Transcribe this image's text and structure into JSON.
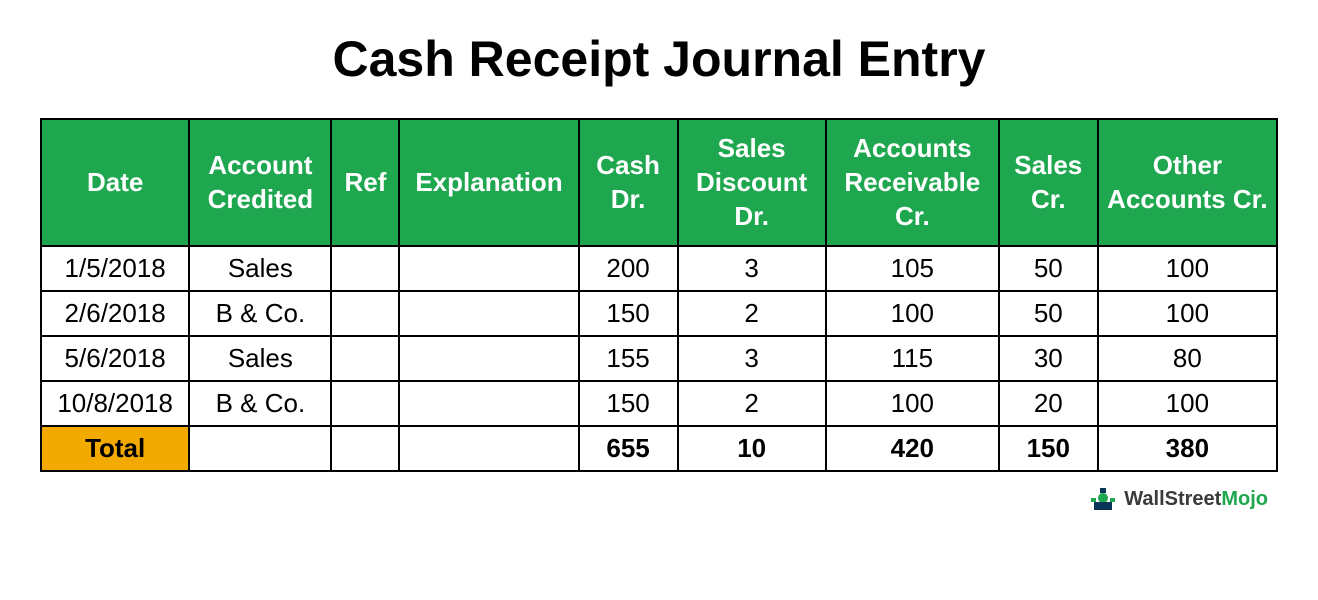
{
  "title": "Cash Receipt Journal Entry",
  "title_fontsize": 50,
  "table": {
    "header_bg": "#1ea74f",
    "header_color": "#ffffff",
    "border_color": "#000000",
    "cell_fontsize": 26,
    "header_fontsize": 26,
    "total_bg": "#f2a900",
    "columns": [
      "Date",
      "Account Credited",
      "Ref",
      "Explanation",
      "Cash Dr.",
      "Sales Discount Dr.",
      "Accounts Receivable Cr.",
      "Sales Cr.",
      "Other Accounts Cr."
    ],
    "col_widths_pct": [
      12,
      11.5,
      5.5,
      14.5,
      8,
      12,
      14,
      8,
      14.5
    ],
    "rows": [
      [
        "1/5/2018",
        "Sales",
        "",
        "",
        "200",
        "3",
        "105",
        "50",
        "100"
      ],
      [
        "2/6/2018",
        "B & Co.",
        "",
        "",
        "150",
        "2",
        "100",
        "50",
        "100"
      ],
      [
        "5/6/2018",
        "Sales",
        "",
        "",
        "155",
        "3",
        "115",
        "30",
        "80"
      ],
      [
        "10/8/2018",
        "B & Co.",
        "",
        "",
        "150",
        "2",
        "100",
        "20",
        "100"
      ]
    ],
    "total_label": "Total",
    "totals": [
      "",
      "",
      "",
      "655",
      "10",
      "420",
      "150",
      "380"
    ]
  },
  "attribution": {
    "pre": "WallStreet",
    "accent": "Mojo"
  }
}
